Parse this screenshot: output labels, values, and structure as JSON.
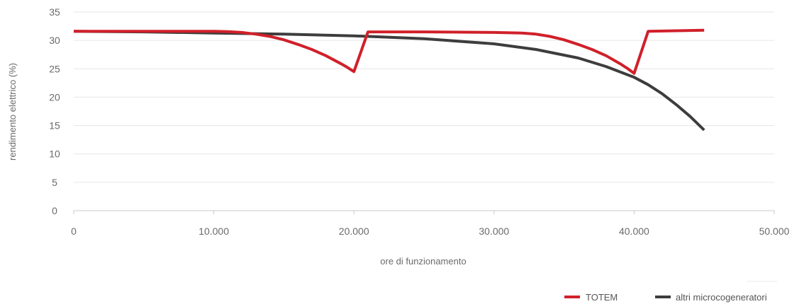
{
  "chart_data": {
    "type": "line",
    "xlabel": "ore di funzionamento",
    "ylabel": "rendimento elettrico (%)",
    "xlim": [
      0,
      50000
    ],
    "ylim": [
      0,
      35
    ],
    "x_ticks": [
      0,
      10000,
      20000,
      30000,
      40000,
      50000
    ],
    "x_tick_labels": [
      "0",
      "10.000",
      "20.000",
      "30.000",
      "40.000",
      "50.000"
    ],
    "y_ticks": [
      0,
      5,
      10,
      15,
      20,
      25,
      30,
      35
    ],
    "y_tick_labels": [
      "0",
      "5",
      "10",
      "15",
      "20",
      "25",
      "30",
      "35"
    ],
    "grid": true,
    "legend_position": "bottom-right",
    "series": [
      {
        "name": "TOTEM",
        "color": "#d0202a",
        "x": [
          0,
          5000,
          10000,
          11000,
          12000,
          13000,
          14000,
          15000,
          16000,
          17000,
          18000,
          19000,
          19500,
          20000,
          21000,
          22000,
          25000,
          30000,
          32000,
          33000,
          34000,
          35000,
          36000,
          37000,
          38000,
          39000,
          39500,
          40000,
          41000,
          43000,
          45000
        ],
        "y": [
          31.6,
          31.6,
          31.6,
          31.55,
          31.4,
          31.1,
          30.7,
          30.1,
          29.3,
          28.4,
          27.3,
          26.0,
          25.3,
          24.5,
          31.5,
          31.5,
          31.5,
          31.4,
          31.3,
          31.1,
          30.7,
          30.1,
          29.3,
          28.4,
          27.3,
          25.9,
          25.1,
          24.2,
          31.6,
          31.7,
          31.8
        ]
      },
      {
        "name": "altri microcogeneratori",
        "color": "#3d3d3d",
        "x": [
          0,
          5000,
          10000,
          15000,
          20000,
          25000,
          30000,
          33000,
          36000,
          38000,
          40000,
          41000,
          42000,
          43000,
          44000,
          45000
        ],
        "y": [
          31.6,
          31.5,
          31.3,
          31.1,
          30.8,
          30.3,
          29.4,
          28.4,
          26.9,
          25.4,
          23.5,
          22.2,
          20.6,
          18.7,
          16.6,
          14.2
        ]
      }
    ]
  }
}
